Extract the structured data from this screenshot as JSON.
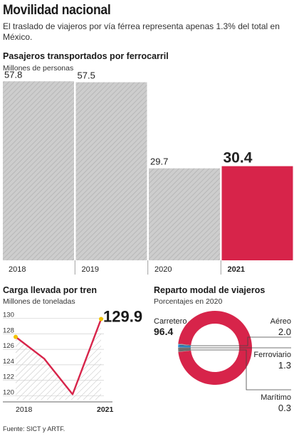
{
  "header": {
    "title": "Movilidad nacional",
    "subtitle": "El traslado de viajeros por vía férrea representa apenas 1.3% del total en México."
  },
  "colors": {
    "accent": "#d7244a",
    "gray": "#c9c9c9",
    "hatch": "#b5b5b5",
    "yellow": "#f2c200",
    "blue": "#2b8fd6"
  },
  "passengers": {
    "title": "Pasajeros transportados por ferrocarril",
    "subtitle": "Millones de personas"
  },
  "cargo": {
    "title": "Carga llevada por tren",
    "subtitle": "Millones de toneladas"
  },
  "modal": {
    "title": "Reparto modal de viajeros",
    "subtitle": "Porcentajes en 2020"
  },
  "source": "Fuente: SICT y ARTF.",
  "chart_data": [
    {
      "type": "bar",
      "title": "Pasajeros transportados por ferrocarril",
      "ylabel": "Millones de personas",
      "categories": [
        "2018",
        "2019",
        "2020",
        "2021"
      ],
      "values": [
        57.8,
        57.5,
        29.7,
        30.4
      ],
      "labels": [
        "57.8",
        "57.5",
        "29.7",
        "30.4"
      ],
      "highlight_index": 3,
      "ylim": [
        0,
        62
      ]
    },
    {
      "type": "line",
      "title": "Carga llevada por tren",
      "ylabel": "Millones de toneladas",
      "x": [
        2018,
        2019,
        2020,
        2021
      ],
      "values": [
        127.6,
        124.8,
        120.2,
        129.9
      ],
      "yticks": [
        "120",
        "122",
        "124",
        "126",
        "128",
        "130"
      ],
      "xlabels": [
        "2018",
        "2021"
      ],
      "end_label": "129.9",
      "ylim": [
        119.5,
        130.5
      ]
    },
    {
      "type": "pie",
      "title": "Reparto modal de viajeros",
      "subtitle": "Porcentajes en 2020",
      "slices": [
        {
          "name": "Carretero",
          "value": 96.4,
          "label": "96.4"
        },
        {
          "name": "Aéreo",
          "value": 2.0,
          "label": "2.0"
        },
        {
          "name": "Ferroviario",
          "value": 1.3,
          "label": "1.3"
        },
        {
          "name": "Marítimo",
          "value": 0.3,
          "label": "0.3"
        }
      ]
    }
  ]
}
